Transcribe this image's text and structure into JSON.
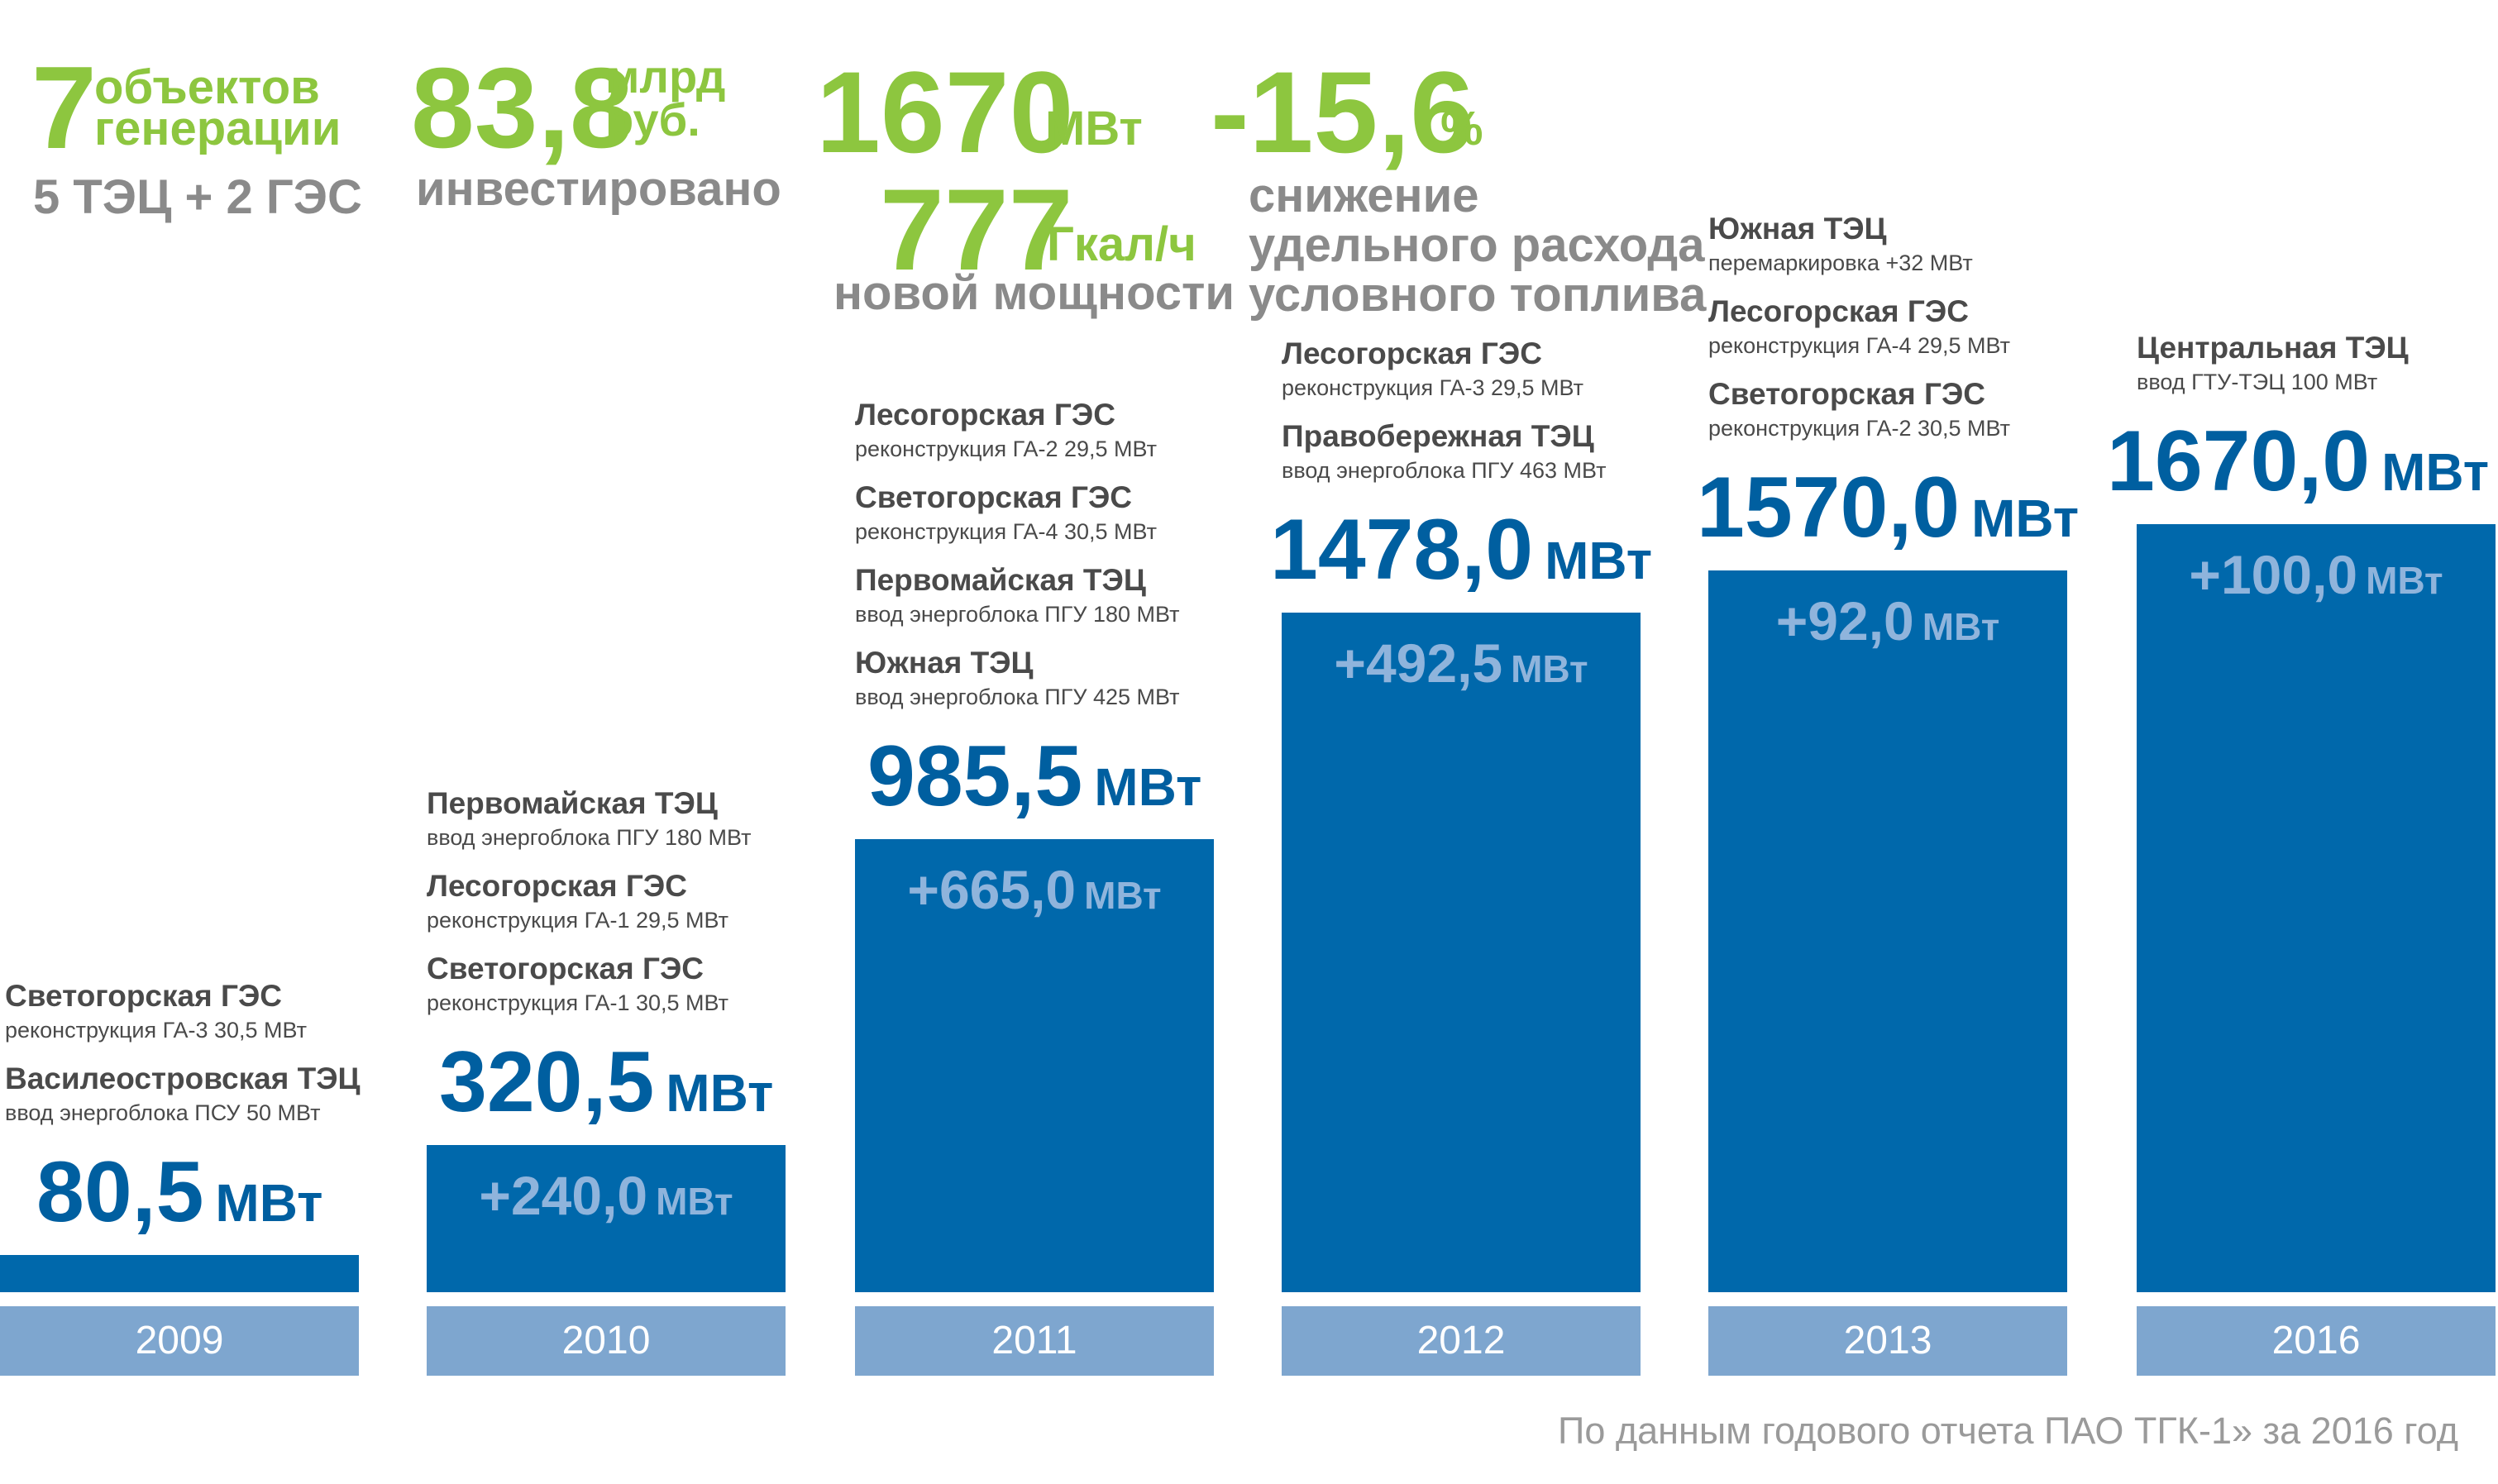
{
  "highlights": {
    "objects": {
      "value": "7",
      "label_line1": "объектов",
      "label_line2": "генерации",
      "sub": "5 ТЭЦ + 2 ГЭС"
    },
    "investment": {
      "value": "83,8",
      "unit_line1": "млрд",
      "unit_line2": "руб.",
      "sub": "инвестировано"
    },
    "capacity": {
      "power_value": "1670",
      "power_unit": "МВт",
      "heat_value": "777",
      "heat_unit": "Гкал/ч",
      "sub": "новой мощности"
    },
    "fuel": {
      "value": "-15,6",
      "unit": "%",
      "sub_line1": "снижение",
      "sub_line2": "удельного расхода",
      "sub_line3": "условного топлива"
    }
  },
  "chart_data": {
    "type": "bar",
    "categories": [
      "2009",
      "2010",
      "2011",
      "2012",
      "2013",
      "2016"
    ],
    "values": [
      80.5,
      320.5,
      985.5,
      1478.0,
      1570.0,
      1670.0
    ],
    "unit": "МВт",
    "total_labels": [
      "80,5",
      "320,5",
      "985,5",
      "1478,0",
      "1570,0",
      "1670,0"
    ],
    "delta_labels": [
      "",
      "+240,0",
      "+665,0",
      "+492,5",
      "+92,0",
      "+100,0"
    ],
    "colors": {
      "bar": "#0068ab",
      "year_band": "#7ea6cf",
      "total_text": "#005fa0",
      "delta_text": "#8fb4dc",
      "highlight": "#8dc63f"
    },
    "annotations": [
      [
        {
          "name": "Светогорская ГЭС",
          "desc": "реконструкция ГА-3 30,5 МВт"
        },
        {
          "name": "Василеостровская ТЭЦ",
          "desc": "ввод энергоблока ПСУ 50 МВт"
        }
      ],
      [
        {
          "name": "Первомайская ТЭЦ",
          "desc": "ввод энергоблока ПГУ 180 МВт"
        },
        {
          "name": "Лесогорская ГЭС",
          "desc": "реконструкция ГА-1 29,5 МВт"
        },
        {
          "name": "Светогорская ГЭС",
          "desc": "реконструкция ГА-1 30,5 МВт"
        }
      ],
      [
        {
          "name": "Лесогорская ГЭС",
          "desc": "реконструкция ГА-2 29,5 МВт"
        },
        {
          "name": "Светогорская ГЭС",
          "desc": "реконструкция ГА-4 30,5 МВт"
        },
        {
          "name": "Первомайская ТЭЦ",
          "desc": "ввод энергоблока ПГУ 180 МВт"
        },
        {
          "name": "Южная ТЭЦ",
          "desc": "ввод энергоблока ПГУ 425 МВт"
        }
      ],
      [
        {
          "name": "Лесогорская ГЭС",
          "desc": "реконструкция ГА-3 29,5 МВт"
        },
        {
          "name": "Правобережная ТЭЦ",
          "desc": "ввод энергоблока ПГУ 463 МВт"
        }
      ],
      [
        {
          "name": "Южная ТЭЦ",
          "desc": "перемаркировка +32 МВт"
        },
        {
          "name": "Лесогорская ГЭС",
          "desc": "реконструкция ГА-4 29,5 МВт"
        },
        {
          "name": "Светогорская ГЭС",
          "desc": "реконструкция ГА-2 30,5 МВт"
        }
      ],
      [
        {
          "name": "Центральная ТЭЦ",
          "desc": "ввод ГТУ-ТЭЦ 100 МВт"
        }
      ]
    ]
  },
  "source_note": "По данным годового отчета ПАО ТГК-1» за 2016 год"
}
